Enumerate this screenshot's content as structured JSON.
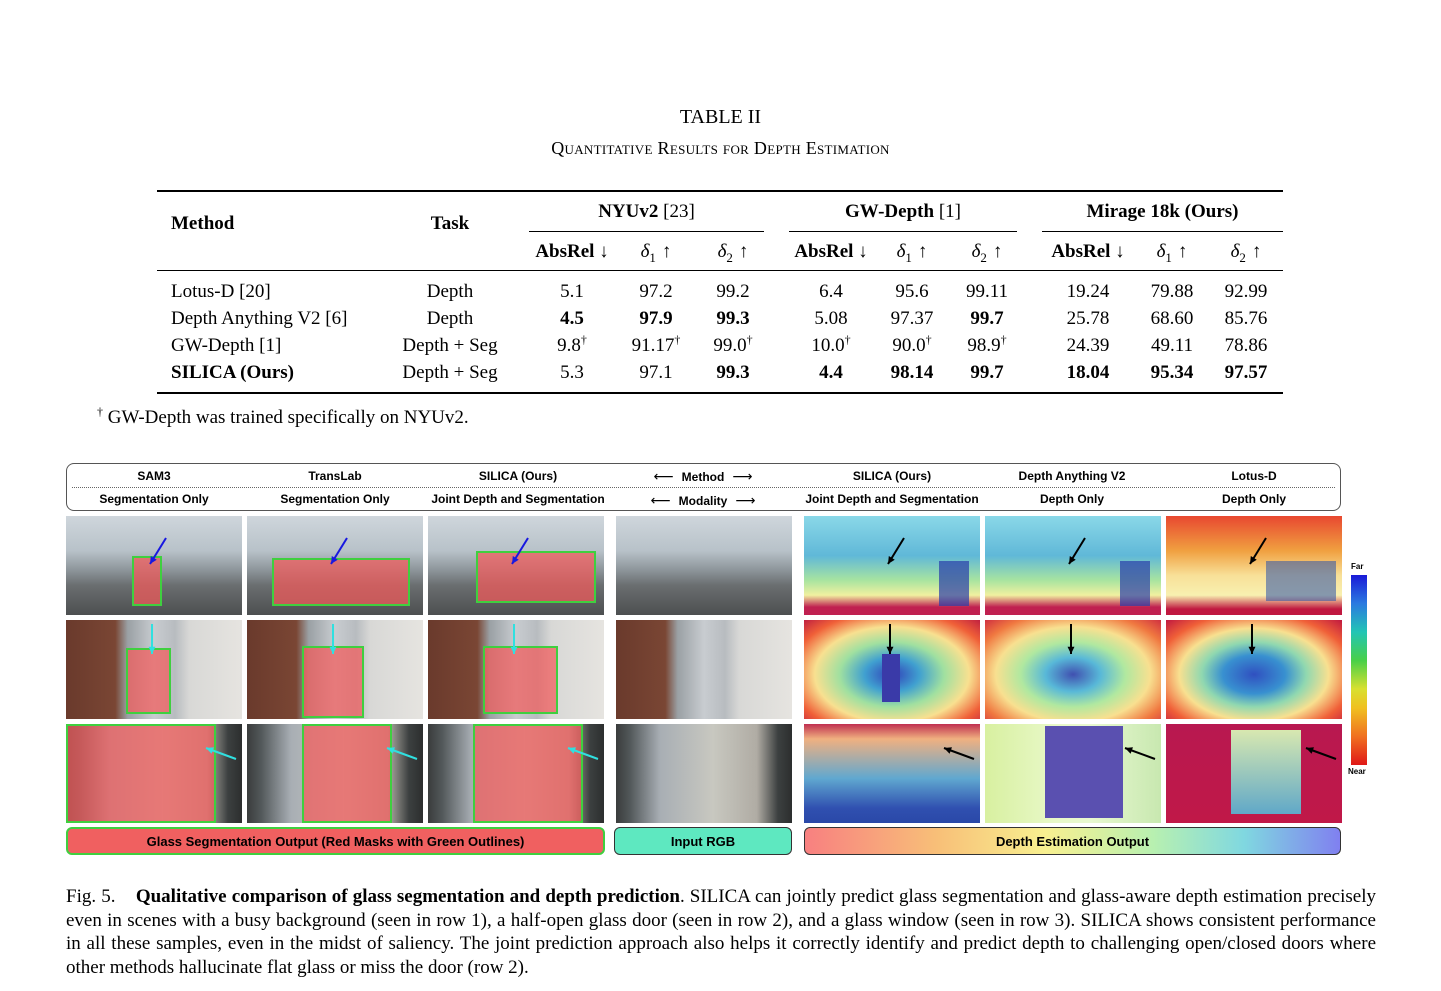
{
  "table": {
    "title": "TABLE II",
    "subtitle": "Quantitative Results for Depth Estimation",
    "col_method": "Method",
    "col_task": "Task",
    "groups": [
      {
        "name": "NYUv2",
        "ref": "[23]"
      },
      {
        "name": "GW-Depth",
        "ref": "[1]"
      },
      {
        "name": "Mirage 18k",
        "ref": "(Ours)"
      }
    ],
    "metric_absrel": "AbsRel ↓",
    "metric_d1_symbol": "δ",
    "metric_d1_sub": "1",
    "metric_d2_sub": "2",
    "metric_arrow": "↑",
    "rows": [
      {
        "method": "Lotus-D [20]",
        "task": "Depth",
        "vals": [
          "5.1",
          "97.2",
          "99.2",
          "6.4",
          "95.6",
          "99.11",
          "19.24",
          "79.88",
          "92.99"
        ],
        "bold": [
          false,
          false,
          false,
          false,
          false,
          false,
          false,
          false,
          false
        ],
        "dag": [
          false,
          false,
          false,
          false,
          false,
          false,
          false,
          false,
          false
        ]
      },
      {
        "method": "Depth Anything V2 [6]",
        "task": "Depth",
        "vals": [
          "4.5",
          "97.9",
          "99.3",
          "5.08",
          "97.37",
          "99.7",
          "25.78",
          "68.60",
          "85.76"
        ],
        "bold": [
          true,
          true,
          true,
          false,
          false,
          true,
          false,
          false,
          false
        ],
        "dag": [
          false,
          false,
          false,
          false,
          false,
          false,
          false,
          false,
          false
        ]
      },
      {
        "method": "GW-Depth [1]",
        "task": "Depth + Seg",
        "vals": [
          "9.8",
          "91.17",
          "99.0",
          "10.0",
          "90.0",
          "98.9",
          "24.39",
          "49.11",
          "78.86"
        ],
        "bold": [
          false,
          false,
          false,
          false,
          false,
          false,
          false,
          false,
          false
        ],
        "dag": [
          true,
          true,
          true,
          true,
          true,
          true,
          false,
          false,
          false
        ]
      },
      {
        "method": "SILICA (Ours)",
        "task": "Depth + Seg",
        "vals": [
          "5.3",
          "97.1",
          "99.3",
          "4.4",
          "98.14",
          "99.7",
          "18.04",
          "95.34",
          "97.57"
        ],
        "bold": [
          false,
          false,
          true,
          true,
          true,
          true,
          true,
          true,
          true
        ],
        "dag": [
          false,
          false,
          false,
          false,
          false,
          false,
          false,
          false,
          false
        ]
      }
    ],
    "dagger": "†",
    "footnote": "GW-Depth was trained specifically on NYUv2."
  },
  "figure": {
    "methods": [
      "SAM3",
      "TransLab",
      "SILICA (Ours)",
      "Method",
      "SILICA (Ours)",
      "Depth Anything V2",
      "Lotus-D"
    ],
    "modalities": [
      "Segmentation Only",
      "Segmentation Only",
      "Joint Depth and Segmentation",
      "Modality",
      "Joint Depth and Segmentation",
      "Depth Only",
      "Depth Only"
    ],
    "arrow_left": "⟵",
    "arrow_right": "⟶",
    "bar_seg": "Glass Segmentation Output (Red Masks with Green Outlines)",
    "bar_rgb": "Input RGB",
    "bar_depth": "Depth Estimation Output",
    "colorbar_far": "Far",
    "colorbar_near": "Near",
    "colors": {
      "seg_bar": "#f06060",
      "seg_outline": "#3fcf3f",
      "rgb_bar": "#5ee8c0",
      "mask": "#f26a6a"
    }
  },
  "caption": {
    "label": "Fig. 5.",
    "bold": "Qualitative comparison of glass segmentation and depth prediction",
    "text": ". SILICA can jointly predict glass segmentation and glass-aware depth estimation precisely even in scenes with a busy background (seen in row 1), a half-open glass door (seen in row 2), and a glass window (seen in row 3). SILICA shows consistent performance in all these samples, even in the midst of saliency. The joint prediction approach also helps it correctly identify and predict depth to challenging open/closed doors where other methods hallucinate flat glass or miss the door (row 2)."
  }
}
